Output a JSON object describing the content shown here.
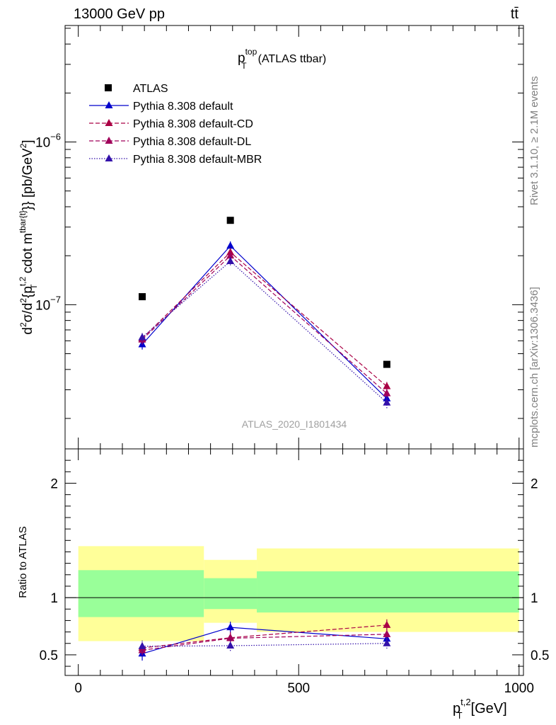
{
  "header": {
    "left": "13000 GeV pp",
    "right": "tt̄"
  },
  "side": {
    "rivet": "Rivet 3.1.10, ≥ 2.1M events",
    "mcplots": "mcplots.cern.ch [arXiv:1306.3436]"
  },
  "watermark": "ATLAS_2020_I1801434",
  "chart_data": [
    {
      "type": "scatter",
      "title": "p_T^top (ATLAS ttbar)",
      "title_main": "p",
      "title_sup": "top",
      "title_sub": "T",
      "title_rest": "(ATLAS ttbar)",
      "ylabel": "d²σ̇/d²{p_T^{t,2} cdot m_{tbar{t}}} [pb/GeV²]",
      "ylabel_parts": [
        "d",
        "2",
        "σ",
        "/d",
        "2",
        "{p",
        "t,2",
        "T",
        " cdot m",
        "tbar{t}",
        "}} [pb/GeV",
        "2",
        "]"
      ],
      "yscale": "log",
      "ylim": [
        1.3e-08,
        5.2e-06
      ],
      "xlim": [
        -30,
        1010
      ],
      "yticks_major": [
        1e-07,
        1e-06
      ],
      "ytick_labels": [
        {
          "base": "10",
          "exp": "−7"
        },
        {
          "base": "10",
          "exp": "−6"
        }
      ],
      "legend_position": "top-left",
      "x": [
        145,
        345,
        700
      ],
      "series": [
        {
          "name": "ATLAS",
          "style": "marker-square",
          "color": "#000000",
          "values": [
            1.12e-07,
            3.3e-07,
            4.3e-08
          ]
        },
        {
          "name": "Pythia 8.308 default",
          "style": "solid",
          "color": "#0000cc",
          "values": [
            5.7e-08,
            2.3e-07,
            2.65e-08
          ],
          "errors": [
            4e-09,
            1.5e-08,
            2e-09
          ]
        },
        {
          "name": "Pythia 8.308 default-CD",
          "style": "dashed",
          "color": "#aa0044",
          "values": [
            6.2e-08,
            2.1e-07,
            3.15e-08
          ],
          "errors": [
            4e-09,
            1.2e-08,
            2e-09
          ]
        },
        {
          "name": "Pythia 8.308 default-DL",
          "style": "dashed",
          "color": "#a0005a",
          "values": [
            6.1e-08,
            2e-07,
            2.85e-08
          ],
          "errors": [
            4e-09,
            1.2e-08,
            2e-09
          ]
        },
        {
          "name": "Pythia 8.308 default-MBR",
          "style": "dotted",
          "color": "#3311aa",
          "values": [
            6.3e-08,
            1.85e-07,
            2.5e-08
          ],
          "errors": [
            4e-09,
            1.2e-08,
            2e-09
          ]
        }
      ]
    },
    {
      "type": "scatter",
      "ylabel": "Ratio to ATLAS",
      "xlabel_main": "p",
      "xlabel_sup": "t,2",
      "xlabel_sub": "T",
      "xlabel_rest": "[GeV]",
      "xlim": [
        -30,
        1010
      ],
      "ylim": [
        0.32,
        2.3
      ],
      "yticks_major": [
        0.5,
        1,
        2
      ],
      "ytick_labels": [
        "0.5",
        "1",
        "2"
      ],
      "xticks_major": [
        0,
        500,
        1000
      ],
      "xtick_labels": [
        "0",
        "500",
        "1000"
      ],
      "x": [
        145,
        345,
        700
      ],
      "bands": [
        {
          "x0": 0,
          "x1": 285,
          "yellow": [
            0.62,
            1.45
          ],
          "green": [
            0.83,
            1.24
          ]
        },
        {
          "x0": 285,
          "x1": 405,
          "yellow": [
            0.78,
            1.33
          ],
          "green": [
            0.9,
            1.17
          ]
        },
        {
          "x0": 405,
          "x1": 1000,
          "yellow": [
            0.7,
            1.43
          ],
          "green": [
            0.87,
            1.23
          ]
        }
      ],
      "series": [
        {
          "name": "Pythia 8.308 default",
          "style": "solid",
          "color": "#0000cc",
          "values": [
            0.51,
            0.74,
            0.64
          ],
          "errors": [
            0.06,
            0.05,
            0.04
          ]
        },
        {
          "name": "Pythia 8.308 default-CD",
          "style": "dashed",
          "color": "#aa0044",
          "values": [
            0.56,
            0.65,
            0.76
          ],
          "errors": [
            0.05,
            0.05,
            0.05
          ]
        },
        {
          "name": "Pythia 8.308 default-DL",
          "style": "dashed",
          "color": "#a0005a",
          "values": [
            0.54,
            0.645,
            0.68
          ],
          "errors": [
            0.05,
            0.05,
            0.05
          ]
        },
        {
          "name": "Pythia 8.308 default-MBR",
          "style": "dotted",
          "color": "#3311aa",
          "values": [
            0.575,
            0.58,
            0.6
          ],
          "errors": [
            0.05,
            0.05,
            0.05
          ]
        }
      ]
    }
  ]
}
